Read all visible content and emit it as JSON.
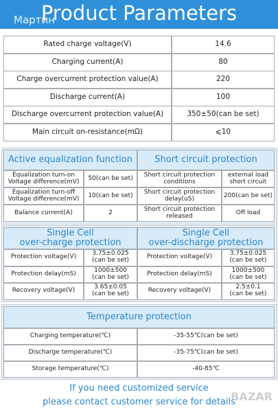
{
  "header": {
    "title": "Product Parameters",
    "watermark": "Мартин"
  },
  "main_table": {
    "rows": [
      [
        "Rated charge voltage(V)",
        "14.6"
      ],
      [
        "Charging current(A)",
        "80"
      ],
      [
        "Charge  overcurrent protection value(A)",
        "220"
      ],
      [
        "Discharge current(A)",
        "100"
      ],
      [
        "Discharge  overcurrent protection value(A)",
        "350±50(can be set)"
      ],
      [
        "Main circuit on-resistance(mΩ)",
        "⩽10"
      ]
    ]
  },
  "equalization": {
    "title": "Active equalization function",
    "rows": [
      [
        "Equalization turn-on\nVoltage difference(mV)",
        "50(can be set)"
      ],
      [
        "Equalization turn-off\nVoltage difference(mV)",
        "10(can be set)"
      ],
      [
        "Balance current(A)",
        "2"
      ]
    ]
  },
  "short_circuit": {
    "title": "Short circuit protection",
    "rows": [
      [
        "Short circuit protection\nconditions",
        "external load\nshort circuit"
      ],
      [
        "Short circuit protection\ndelay(uS)",
        "200(can be set)"
      ],
      [
        "Short circuit protection\nreleased",
        "Off load"
      ]
    ]
  },
  "overcharge": {
    "title": [
      "Single Cell",
      "over-charge protection"
    ],
    "rows": [
      [
        "Protection voltage(V)",
        "3.75±0.025\n(can be set)"
      ],
      [
        "Protection delay(mS)",
        "1000±500\n(can be set)"
      ],
      [
        "Recovery voltage(V)",
        "3.65±0.05\n(can be set)"
      ]
    ]
  },
  "overdischarge": {
    "title": [
      "Single Cell",
      "over-discharge protection"
    ],
    "rows": [
      [
        "Protection voltage(V)",
        "3.75±0.025\n(can be set)"
      ],
      [
        "Protection delay(mS)",
        "1000±500\n(can be set)"
      ],
      [
        "Recovery voltage(V)",
        "2.5±0.1\n(can be set)"
      ]
    ]
  },
  "temperature": {
    "title": "Temperature protection",
    "rows": [
      [
        "Charging temperature(℃)",
        "-35-55℃(can be set)"
      ],
      [
        "Discharge temperature(℃)",
        "-35-75℃(can be set)"
      ],
      [
        "Storage temperature(℃)",
        "-40-85℃"
      ]
    ]
  },
  "footer": {
    "lines": [
      "If you need customized service",
      "please contact customer service for details"
    ],
    "logo": "BAZAR"
  }
}
